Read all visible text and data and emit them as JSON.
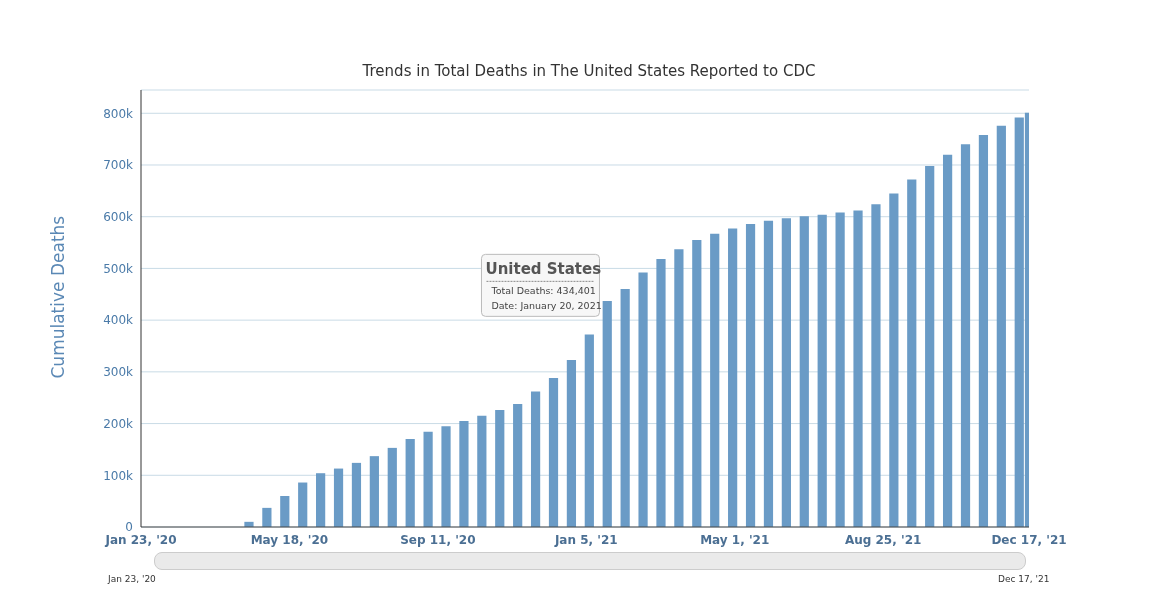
{
  "chart_data": {
    "type": "bar",
    "title": "Trends in Total Deaths in The United States Reported to CDC",
    "ylabel": "Cumulative Deaths",
    "color": "#6a9bc6",
    "grid": "y",
    "x": [
      "2020-01-23",
      "2020-02-06",
      "2020-02-20",
      "2020-03-05",
      "2020-03-19",
      "2020-04-02",
      "2020-04-16",
      "2020-04-30",
      "2020-05-14",
      "2020-05-28",
      "2020-06-11",
      "2020-06-25",
      "2020-07-09",
      "2020-07-23",
      "2020-08-06",
      "2020-08-20",
      "2020-09-03",
      "2020-09-17",
      "2020-10-01",
      "2020-10-15",
      "2020-10-29",
      "2020-11-12",
      "2020-11-26",
      "2020-12-10",
      "2020-12-24",
      "2021-01-07",
      "2021-01-21",
      "2021-02-04",
      "2021-02-18",
      "2021-03-04",
      "2021-03-18",
      "2021-04-01",
      "2021-04-15",
      "2021-04-29",
      "2021-05-13",
      "2021-05-27",
      "2021-06-10",
      "2021-06-24",
      "2021-07-08",
      "2021-07-22",
      "2021-08-05",
      "2021-08-19",
      "2021-09-02",
      "2021-09-16",
      "2021-09-30",
      "2021-10-14",
      "2021-10-28",
      "2021-11-11",
      "2021-11-25",
      "2021-12-09",
      "2021-12-17"
    ],
    "values": [
      0,
      0,
      0,
      0,
      0,
      0,
      10000,
      37000,
      60000,
      86000,
      104000,
      113000,
      124000,
      137000,
      153000,
      170000,
      184000,
      195000,
      205000,
      215000,
      226000,
      238000,
      262000,
      288000,
      323000,
      372000,
      437000,
      460000,
      492000,
      518000,
      537000,
      555000,
      567000,
      577000,
      586000,
      592000,
      597000,
      601000,
      604000,
      608000,
      612000,
      624000,
      645000,
      672000,
      698000,
      720000,
      740000,
      758000,
      776000,
      792000,
      801000
    ],
    "xlim": [
      "2020-01-23",
      "2021-12-17"
    ],
    "xticks": [
      {
        "value": "2020-01-23",
        "label": "Jan 23, '20"
      },
      {
        "value": "2020-05-18",
        "label": "May 18, '20"
      },
      {
        "value": "2020-09-11",
        "label": "Sep 11, '20"
      },
      {
        "value": "2021-01-05",
        "label": "Jan 5, '21"
      },
      {
        "value": "2021-05-01",
        "label": "May 1, '21"
      },
      {
        "value": "2021-08-25",
        "label": "Aug 25, '21"
      },
      {
        "value": "2021-12-17",
        "label": "Dec 17, '21"
      }
    ],
    "ylim": [
      0,
      845000
    ],
    "yticks": [
      0,
      {
        "value": 100000,
        "label": "100k"
      },
      {
        "value": 200000,
        "label": "200k"
      },
      {
        "value": 300000,
        "label": "300k"
      },
      {
        "value": 400000,
        "label": "400k"
      },
      {
        "value": 500000,
        "label": "500k"
      },
      {
        "value": 600000,
        "label": "600k"
      },
      {
        "value": 700000,
        "label": "700k"
      },
      {
        "value": 800000,
        "label": "800k"
      }
    ],
    "annotations": [
      {
        "text": "United States\nTotal Deaths: 434,401\nDate: January 20, 2021",
        "x": "2021-01-20",
        "y": 434401
      },
      "Jan 23, '20",
      "Dec 17, '21"
    ]
  }
}
